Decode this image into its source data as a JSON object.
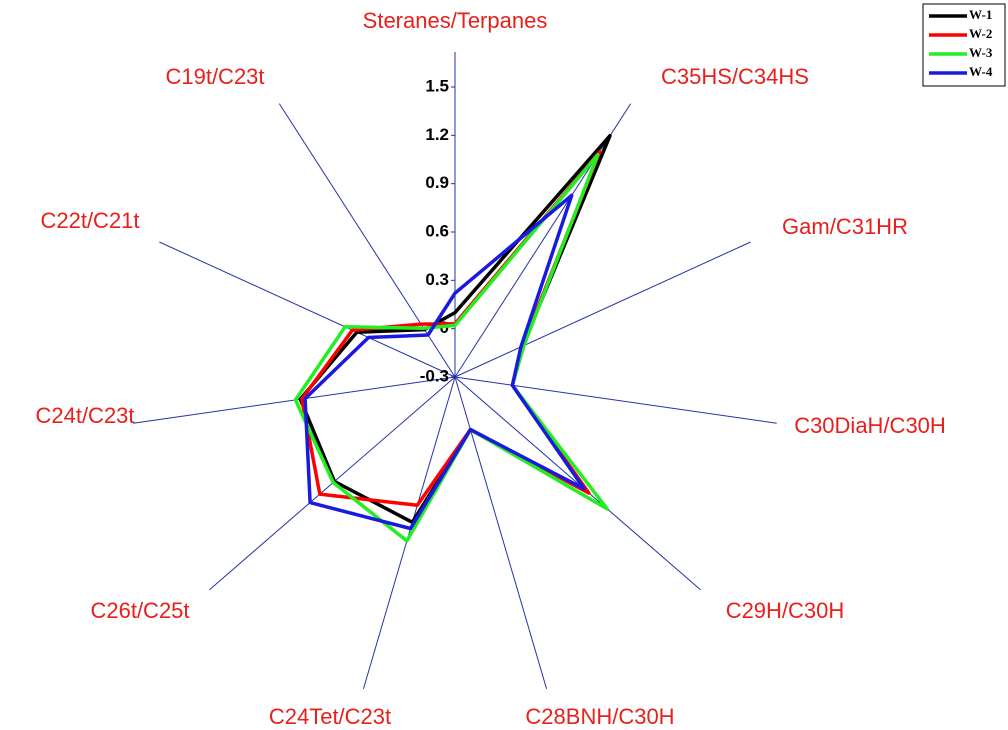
{
  "chart_data": {
    "type": "radar",
    "categories": [
      "Steranes/Terpanes",
      "C35HS/C34HS",
      "Gam/C31HR",
      "C30DiaH/C30H",
      "C29H/C30H",
      "C28BNH/C30H",
      "C24Tet/C23t",
      "C26t/C25t",
      "C24t/C23t",
      "C22t/C21t",
      "C19t/C23t"
    ],
    "series": [
      {
        "name": "W-1",
        "color": "#000000",
        "values": [
          0.1,
          1.48,
          0.16,
          0.06,
          0.78,
          0.04,
          0.64,
          0.69,
          0.67,
          0.37,
          0.05
        ]
      },
      {
        "name": "W-2",
        "color": "#ff0000",
        "values": [
          0.03,
          1.36,
          0.16,
          0.06,
          0.8,
          0.04,
          0.53,
          0.81,
          0.66,
          0.4,
          0.09
        ]
      },
      {
        "name": "W-3",
        "color": "#22ee22",
        "values": [
          0.02,
          1.34,
          0.17,
          0.06,
          0.95,
          0.04,
          0.76,
          0.7,
          0.7,
          0.45,
          0.06
        ]
      },
      {
        "name": "W-4",
        "color": "#1a1adf",
        "values": [
          0.22,
          1.04,
          0.15,
          0.06,
          0.76,
          0.04,
          0.68,
          0.89,
          0.64,
          0.29,
          0.01
        ]
      }
    ],
    "rlim": [
      -0.3,
      1.5
    ],
    "rticks": [
      -0.3,
      0.0,
      0.3,
      0.6,
      0.9,
      1.2,
      1.5
    ],
    "axis_color": "#2233aa",
    "legend": "top-right"
  }
}
